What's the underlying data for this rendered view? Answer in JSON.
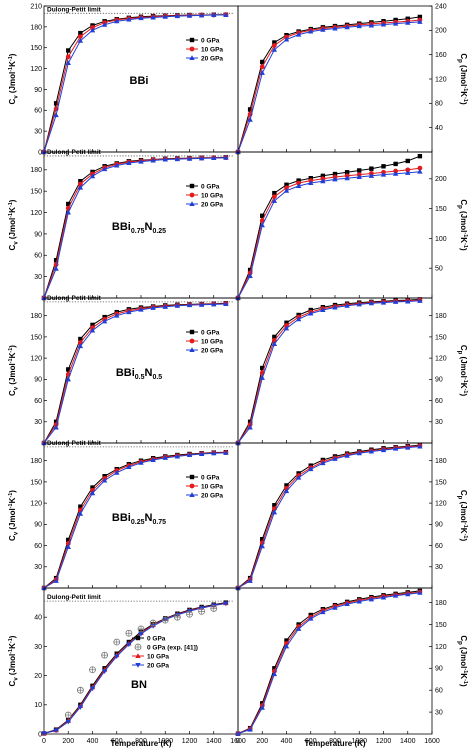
{
  "figure": {
    "xlabel": "Temperature (K)",
    "ylabel_left": "C_v (Jmol⁻¹K⁻¹)",
    "ylabel_right": "C_p (Jmol⁻¹K⁻¹)",
    "x_ticks": [
      "0",
      "200",
      "400",
      "600",
      "800",
      "1000",
      "1200",
      "1400",
      "1600"
    ],
    "dulong_petit_label": "Dulong-Petit limit"
  },
  "legend": {
    "p0": "0 GPa",
    "exp": "0 GPa (exp. [41])",
    "p10": "10 GPa",
    "p20": "20 GPa"
  },
  "chart_data": [
    {
      "type": "line",
      "material": "BBi",
      "material_parts": [
        {
          "t": "BBi",
          "sub": false
        }
      ],
      "quantity": "Cv",
      "xlim": [
        0,
        1600
      ],
      "ylim": [
        0,
        210
      ],
      "yticks": [
        0,
        30,
        60,
        90,
        120,
        150,
        180,
        210
      ],
      "dulong_petit": 199.5,
      "x": [
        0,
        100,
        200,
        300,
        400,
        500,
        600,
        700,
        800,
        900,
        1000,
        1100,
        1200,
        1300,
        1400,
        1500
      ],
      "series": [
        {
          "name": "0 GPa",
          "values": [
            0,
            70,
            146,
            171,
            182,
            188,
            191,
            193,
            194.5,
            195.5,
            196,
            196.5,
            197,
            197,
            197.5,
            197.5
          ]
        },
        {
          "name": "10 GPa",
          "values": [
            0,
            62,
            137,
            166,
            179,
            186,
            190,
            192,
            193.5,
            194.5,
            195.5,
            196,
            196.5,
            197,
            197,
            197.5
          ]
        },
        {
          "name": "20 GPa",
          "values": [
            0,
            53,
            128,
            160,
            175,
            183,
            188,
            190.5,
            192.5,
            193.5,
            194.5,
            195.5,
            196,
            196.5,
            197,
            197
          ]
        }
      ]
    },
    {
      "type": "line",
      "material": "BBi",
      "quantity": "Cp",
      "xlim": [
        0,
        1600
      ],
      "ylim": [
        0,
        240
      ],
      "yticks": [
        40,
        80,
        120,
        160,
        200,
        240
      ],
      "x": [
        0,
        100,
        200,
        300,
        400,
        500,
        600,
        700,
        800,
        900,
        1000,
        1100,
        1200,
        1300,
        1400,
        1500
      ],
      "series": [
        {
          "name": "0 GPa",
          "values": [
            0,
            70,
            148,
            180,
            192,
            198,
            202,
            205,
            207,
            209,
            211,
            213,
            215,
            217,
            219,
            222
          ]
        },
        {
          "name": "10 GPa",
          "values": [
            0,
            62,
            140,
            175,
            189,
            196,
            200,
            203,
            205,
            207,
            209,
            210.5,
            212,
            213.5,
            215,
            217
          ]
        },
        {
          "name": "20 GPa",
          "values": [
            0,
            53,
            130,
            168,
            185,
            193,
            198,
            201,
            203,
            205,
            207,
            208,
            209.5,
            211,
            212.5,
            214
          ]
        }
      ]
    },
    {
      "type": "line",
      "material": "BBi0.75N0.25",
      "material_parts": [
        {
          "t": "BBi",
          "sub": false
        },
        {
          "t": "0.75",
          "sub": true
        },
        {
          "t": "N",
          "sub": false
        },
        {
          "t": "0.25",
          "sub": true
        }
      ],
      "quantity": "Cv",
      "xlim": [
        0,
        1600
      ],
      "ylim": [
        0,
        205
      ],
      "yticks": [
        30,
        60,
        90,
        120,
        150,
        180
      ],
      "dulong_petit": 199.5,
      "x": [
        0,
        100,
        200,
        300,
        400,
        500,
        600,
        700,
        800,
        900,
        1000,
        1100,
        1200,
        1300,
        1400,
        1500
      ],
      "series": [
        {
          "name": "0 GPa",
          "values": [
            0,
            53,
            132,
            164,
            177,
            185,
            189,
            192,
            193.5,
            194.5,
            195.5,
            196,
            196.5,
            197,
            197,
            197.5
          ]
        },
        {
          "name": "10 GPa",
          "values": [
            0,
            47,
            126,
            160,
            174,
            183,
            188,
            191,
            192.5,
            194,
            195,
            195.5,
            196,
            196.5,
            197,
            197
          ]
        },
        {
          "name": "20 GPa",
          "values": [
            0,
            41,
            120,
            155,
            171,
            181,
            186,
            189.5,
            191.5,
            193,
            194.5,
            195,
            195.5,
            196,
            196.5,
            197
          ]
        }
      ]
    },
    {
      "type": "line",
      "material": "BBi0.75N0.25",
      "quantity": "Cp",
      "xlim": [
        0,
        1600
      ],
      "ylim": [
        0,
        245
      ],
      "yticks": [
        50,
        100,
        150,
        200
      ],
      "x": [
        0,
        100,
        200,
        300,
        400,
        500,
        600,
        700,
        800,
        900,
        1000,
        1100,
        1200,
        1300,
        1400,
        1500
      ],
      "series": [
        {
          "name": "0 GPa",
          "values": [
            0,
            47,
            138,
            176,
            190,
            197,
            201,
            205,
            208,
            211,
            214,
            217,
            221,
            225,
            230,
            238
          ]
        },
        {
          "name": "10 GPa",
          "values": [
            0,
            42,
            130,
            170,
            185,
            193,
            197,
            200,
            203,
            205,
            207,
            209,
            211,
            213,
            215,
            218
          ]
        },
        {
          "name": "20 GPa",
          "values": [
            0,
            37,
            122,
            163,
            180,
            188,
            193,
            196,
            199,
            201,
            203,
            205,
            207,
            208.5,
            210,
            212
          ]
        }
      ]
    },
    {
      "type": "line",
      "material": "BBi0.5N0.5",
      "material_parts": [
        {
          "t": "BBi",
          "sub": false
        },
        {
          "t": "0.5",
          "sub": true
        },
        {
          "t": "N",
          "sub": false
        },
        {
          "t": "0.5",
          "sub": true
        }
      ],
      "quantity": "Cv",
      "xlim": [
        0,
        1600
      ],
      "ylim": [
        0,
        205
      ],
      "yticks": [
        30,
        60,
        90,
        120,
        150,
        180
      ],
      "dulong_petit": 199.5,
      "x": [
        0,
        100,
        200,
        300,
        400,
        500,
        600,
        700,
        800,
        900,
        1000,
        1100,
        1200,
        1300,
        1400,
        1500
      ],
      "series": [
        {
          "name": "0 GPa",
          "values": [
            0,
            30,
            104,
            147,
            167,
            178,
            185,
            189,
            191.5,
            193,
            194.5,
            195.5,
            196,
            196.5,
            197,
            197.5
          ]
        },
        {
          "name": "10 GPa",
          "values": [
            0,
            26,
            97,
            142,
            163,
            175,
            182.5,
            187,
            190,
            192,
            193.5,
            194.5,
            195.5,
            196,
            196.5,
            197
          ]
        },
        {
          "name": "20 GPa",
          "values": [
            0,
            22,
            90,
            137,
            159,
            172,
            180,
            185,
            188.5,
            191,
            192.5,
            194,
            195,
            195.5,
            196,
            196.5
          ]
        }
      ]
    },
    {
      "type": "line",
      "material": "BBi0.5N0.5",
      "quantity": "Cp",
      "xlim": [
        0,
        1600
      ],
      "ylim": [
        0,
        205
      ],
      "yticks": [
        30,
        60,
        90,
        120,
        150,
        180
      ],
      "x": [
        0,
        100,
        200,
        300,
        400,
        500,
        600,
        700,
        800,
        900,
        1000,
        1100,
        1200,
        1300,
        1400,
        1500
      ],
      "series": [
        {
          "name": "0 GPa",
          "values": [
            0,
            30,
            106,
            150,
            170,
            181,
            188,
            192,
            195,
            197,
            198.5,
            199.5,
            200.5,
            201.5,
            202,
            203
          ]
        },
        {
          "name": "10 GPa",
          "values": [
            0,
            26,
            99,
            145,
            166,
            178,
            185,
            190,
            193,
            195.5,
            197,
            198.5,
            199.5,
            200.5,
            201,
            202
          ]
        },
        {
          "name": "20 GPa",
          "values": [
            0,
            22,
            92,
            140,
            162,
            175,
            183,
            188,
            191.5,
            194,
            196,
            197.5,
            198.5,
            199.5,
            200,
            201
          ]
        }
      ]
    },
    {
      "type": "line",
      "material": "BBi0.25N0.75",
      "material_parts": [
        {
          "t": "BBi",
          "sub": false
        },
        {
          "t": "0.25",
          "sub": true
        },
        {
          "t": "N",
          "sub": false
        },
        {
          "t": "0.75",
          "sub": true
        }
      ],
      "quantity": "Cv",
      "xlim": [
        0,
        1600
      ],
      "ylim": [
        0,
        205
      ],
      "yticks": [
        30,
        60,
        90,
        120,
        150,
        180
      ],
      "dulong_petit": 199.5,
      "x": [
        0,
        100,
        200,
        300,
        400,
        500,
        600,
        700,
        800,
        900,
        1000,
        1100,
        1200,
        1300,
        1400,
        1500
      ],
      "series": [
        {
          "name": "0 GPa",
          "values": [
            0,
            14,
            68,
            115,
            142,
            158,
            168,
            175,
            180,
            183.5,
            186,
            188,
            189.5,
            190.5,
            191.5,
            192
          ]
        },
        {
          "name": "10 GPa",
          "values": [
            0,
            12,
            63,
            110,
            138,
            155,
            166,
            173,
            178.5,
            182,
            185,
            187,
            188.5,
            190,
            191,
            191.5
          ]
        },
        {
          "name": "20 GPa",
          "values": [
            0,
            10,
            58,
            105,
            134,
            152,
            163,
            171,
            177,
            181,
            184,
            186,
            188,
            189.5,
            190.5,
            191
          ]
        }
      ]
    },
    {
      "type": "line",
      "material": "BBi0.25N0.75",
      "quantity": "Cp",
      "xlim": [
        0,
        1600
      ],
      "ylim": [
        0,
        205
      ],
      "yticks": [
        30,
        60,
        90,
        120,
        150,
        180
      ],
      "x": [
        0,
        100,
        200,
        300,
        400,
        500,
        600,
        700,
        800,
        900,
        1000,
        1100,
        1200,
        1300,
        1400,
        1500
      ],
      "series": [
        {
          "name": "0 GPa",
          "values": [
            0,
            14,
            69,
            117,
            145,
            162,
            173,
            181,
            186,
            190,
            193,
            195.5,
            197.5,
            199,
            200.5,
            202
          ]
        },
        {
          "name": "10 GPa",
          "values": [
            0,
            12,
            64,
            112,
            141,
            159,
            170,
            178.5,
            184,
            188.5,
            191.5,
            194,
            196,
            198,
            199.5,
            201
          ]
        },
        {
          "name": "20 GPa",
          "values": [
            0,
            10,
            59,
            107,
            137,
            156,
            168,
            176.5,
            182.5,
            187,
            190.5,
            193,
            195,
            197,
            198.5,
            200
          ]
        }
      ]
    },
    {
      "type": "line",
      "material": "BN",
      "material_parts": [
        {
          "t": "BN",
          "sub": false
        }
      ],
      "quantity": "Cv",
      "xlim": [
        0,
        1600
      ],
      "ylim": [
        0,
        50
      ],
      "yticks": [
        0,
        10,
        20,
        30,
        40
      ],
      "dulong_petit": 45.5,
      "x": [
        0,
        100,
        200,
        300,
        400,
        500,
        600,
        700,
        800,
        900,
        1000,
        1100,
        1200,
        1300,
        1400,
        1500
      ],
      "series": [
        {
          "name": "0 GPa",
          "values": [
            0.2,
            1.5,
            4.8,
            10,
            16.5,
            22.5,
            27.5,
            31.5,
            35,
            37.6,
            39.6,
            41.2,
            42.5,
            43.5,
            44.3,
            45
          ]
        },
        {
          "name": "10 GPa",
          "values": [
            0.2,
            1.3,
            4.5,
            9.6,
            16,
            22,
            27,
            31,
            34.6,
            37.3,
            39.4,
            41,
            42.3,
            43.3,
            44.1,
            44.8
          ]
        },
        {
          "name": "20 GPa",
          "values": [
            0.2,
            1.2,
            4.2,
            9.2,
            15.6,
            21.5,
            26.6,
            30.7,
            34.3,
            37,
            39.2,
            40.8,
            42.1,
            43.1,
            44,
            44.7
          ]
        }
      ],
      "experiment": {
        "name": "0 GPa (exp. [41])",
        "x": [
          200,
          300,
          400,
          500,
          600,
          700,
          800,
          900,
          1000,
          1100,
          1200,
          1300,
          1400
        ],
        "values": [
          6.5,
          15,
          22,
          27,
          31.5,
          34.5,
          36,
          38,
          39,
          40,
          41,
          42,
          43
        ]
      }
    },
    {
      "type": "line",
      "material": "BN",
      "quantity": "Cp",
      "xlim": [
        0,
        1600
      ],
      "ylim": [
        0,
        200
      ],
      "yticks": [
        30,
        60,
        90,
        120,
        150,
        180
      ],
      "x": [
        0,
        100,
        200,
        300,
        400,
        500,
        600,
        700,
        800,
        900,
        1000,
        1100,
        1200,
        1300,
        1400,
        1500
      ],
      "series": [
        {
          "name": "0 GPa",
          "values": [
            0.5,
            8,
            42,
            90,
            128,
            150,
            163,
            171,
            176.5,
            181,
            184.5,
            187.5,
            190,
            192,
            194,
            196
          ]
        },
        {
          "name": "10 GPa",
          "values": [
            0.5,
            7,
            39,
            86,
            124,
            147,
            160,
            169,
            175,
            179.5,
            183,
            186,
            188.5,
            190.5,
            192.5,
            194.5
          ]
        },
        {
          "name": "20 GPa",
          "values": [
            0.5,
            6,
            36,
            82,
            120,
            144,
            158,
            167,
            173,
            178,
            181.5,
            184.5,
            187,
            189.5,
            191.5,
            193.5
          ]
        }
      ]
    }
  ],
  "colors": {
    "p0": "#000000",
    "p10": "#e41a1c",
    "p20": "#1f3fd6",
    "exp": "#777777",
    "dotted": "#555555"
  }
}
